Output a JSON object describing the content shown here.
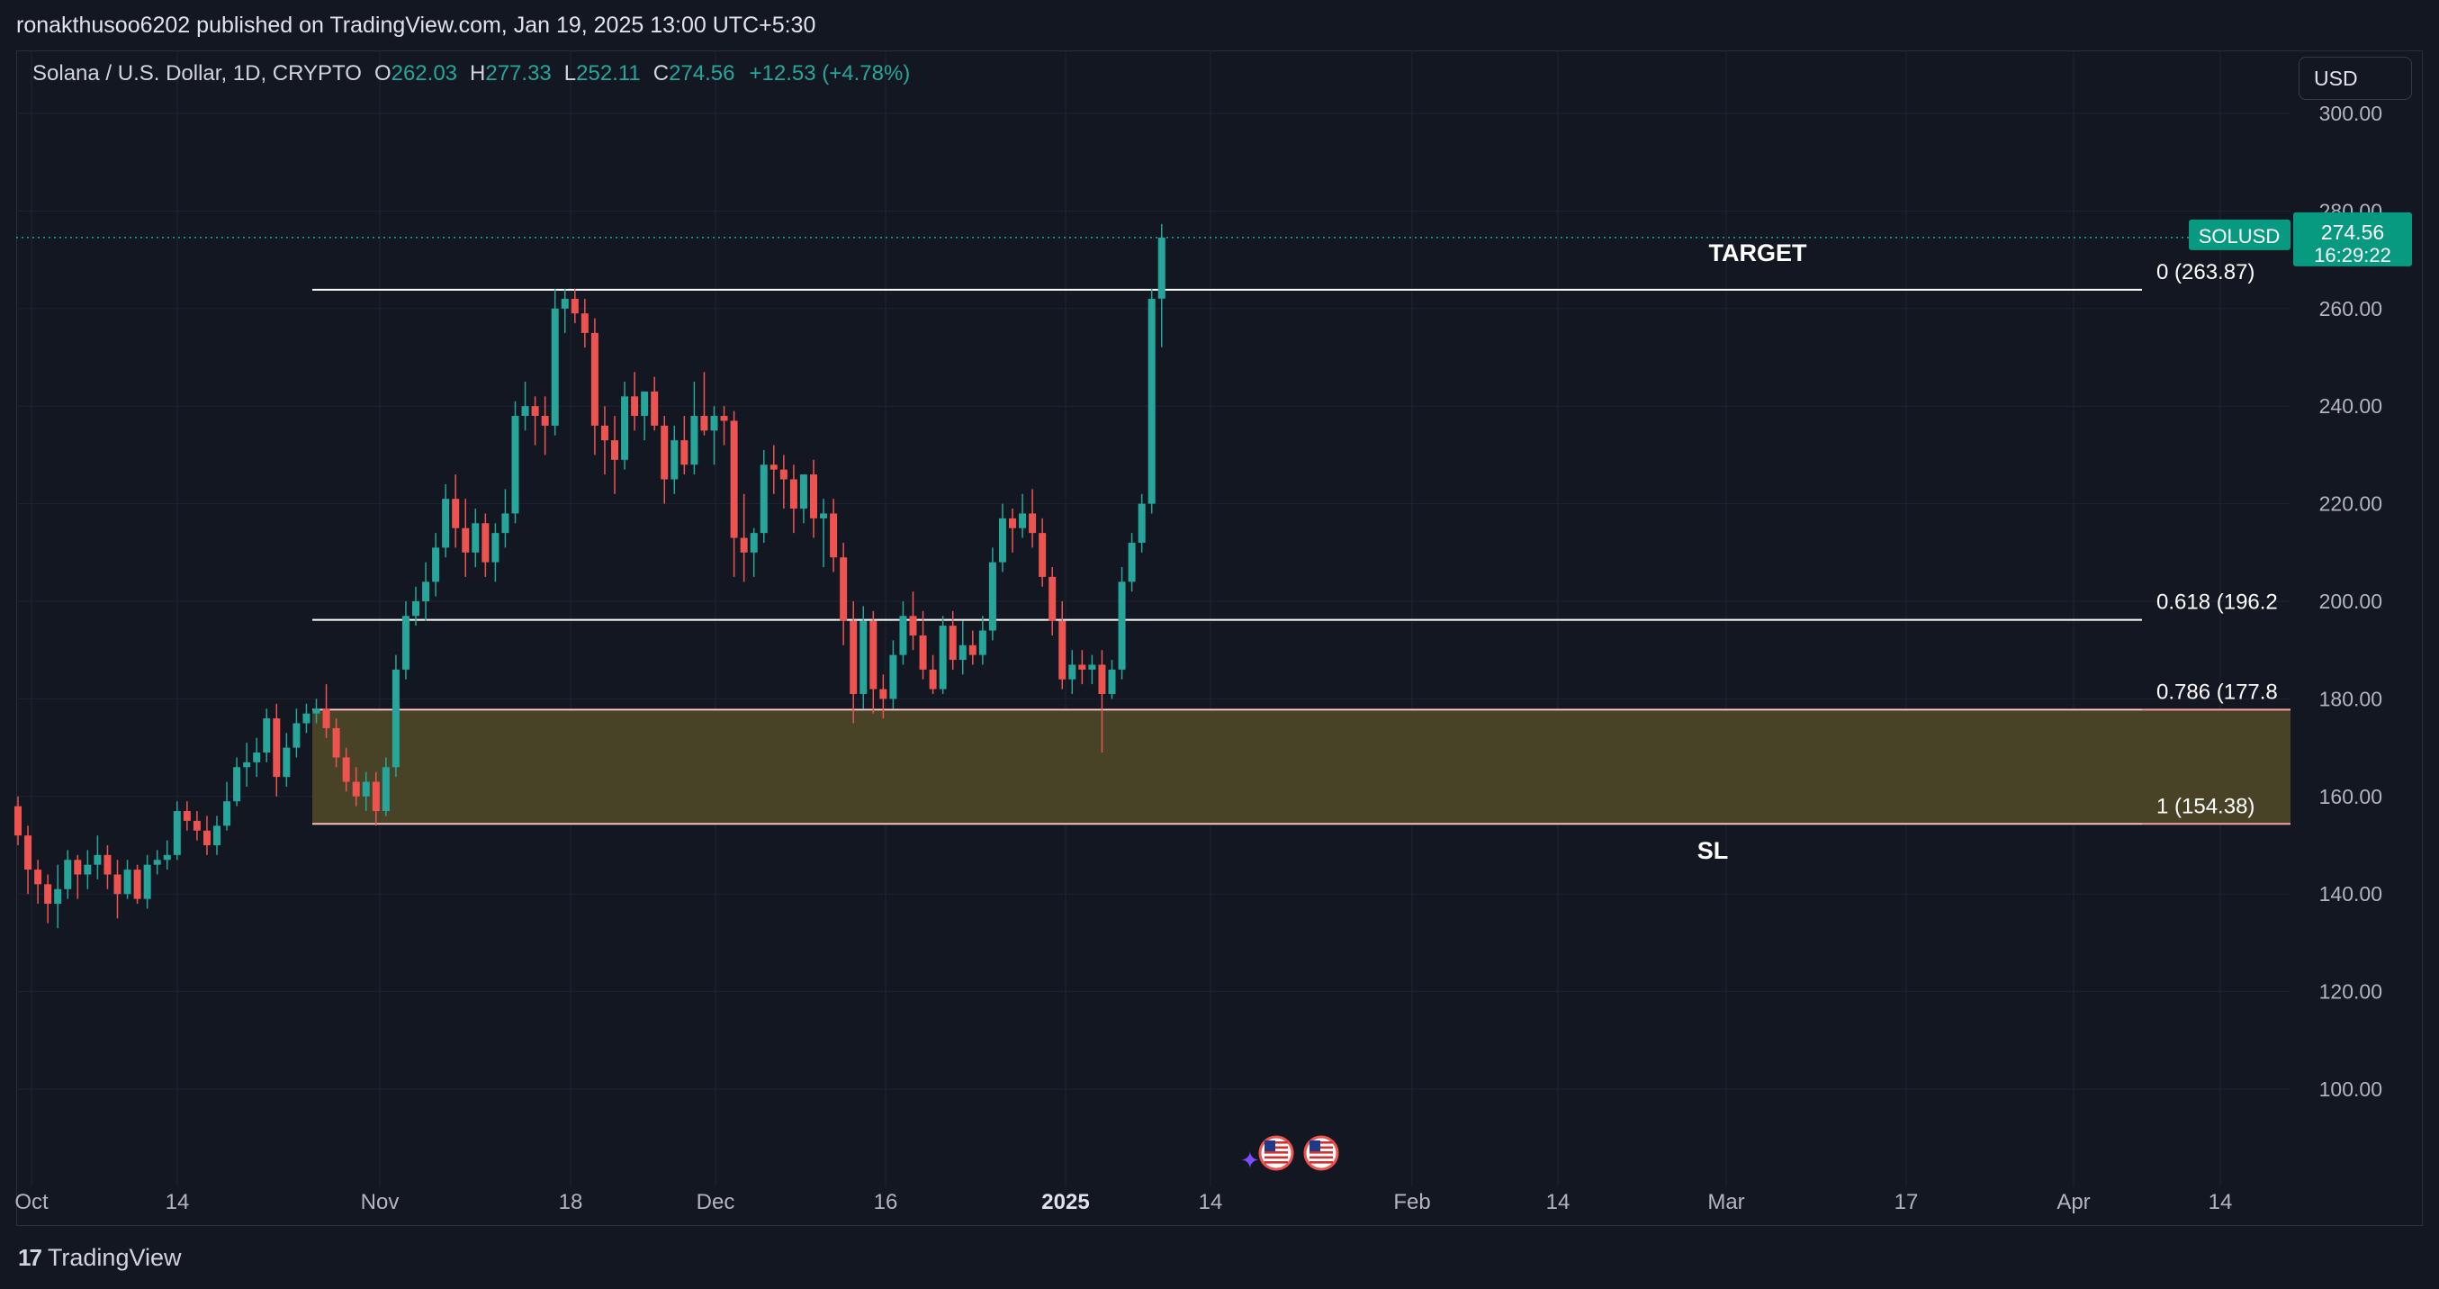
{
  "header": {
    "publisher_text": "ronakthusoo6202 published on TradingView.com, Jan 19, 2025 13:00 UTC+5:30"
  },
  "legend": {
    "symbol": "Solana / U.S. Dollar, 1D, CRYPTO",
    "open_label": "O",
    "open": "262.03",
    "high_label": "H",
    "high": "277.33",
    "low_label": "L",
    "low": "252.11",
    "close_label": "C",
    "close": "274.56",
    "change": "+12.53 (+4.78%)"
  },
  "currency_button": "USD",
  "colors": {
    "background": "#131722",
    "up": "#26a69a",
    "down": "#ef5350",
    "grid": "#1f2431",
    "zone_fill": "#4b4628",
    "zone_border": "#f5a3a3",
    "price_tag": "#089981"
  },
  "price_axis": {
    "ticks": [
      "300.00",
      "280.00",
      "260.00",
      "240.00",
      "220.00",
      "200.00",
      "180.00",
      "160.00",
      "140.00",
      "120.00",
      "100.00"
    ],
    "current_symbol": "SOLUSD",
    "current_price": "274.56",
    "countdown": "16:29:22"
  },
  "time_axis": {
    "ticks": [
      "Oct",
      "14",
      "Nov",
      "18",
      "Dec",
      "16",
      "2025",
      "14",
      "Feb",
      "14",
      "Mar",
      "17",
      "Apr",
      "14"
    ]
  },
  "annotations": {
    "target_label": "TARGET",
    "sl_label": "SL",
    "fib_levels": [
      {
        "ratio_label": "0 (263.87)",
        "price": 263.87
      },
      {
        "ratio_label": "0.618 (196.2",
        "price": 196.2
      },
      {
        "ratio_label": "0.786 (177.8",
        "price": 177.8
      },
      {
        "ratio_label": "1 (154.38)",
        "price": 154.38
      }
    ]
  },
  "event_icons": [
    "us-flag-icon",
    "us-flag-icon"
  ],
  "footer": {
    "brand": "TradingView",
    "brand_mark": "17"
  },
  "chart_data": {
    "type": "candlestick",
    "title": "Solana / U.S. Dollar, 1D, CRYPTO",
    "ylim": [
      90,
      305
    ],
    "start_date": "2024-09-29",
    "candles": [
      {
        "o": 158.0,
        "h": 160.0,
        "l": 150.0,
        "c": 152.0
      },
      {
        "o": 152.0,
        "h": 154.0,
        "l": 140.0,
        "c": 145.0
      },
      {
        "o": 145.0,
        "h": 147.0,
        "l": 138.0,
        "c": 142.0
      },
      {
        "o": 142.0,
        "h": 144.0,
        "l": 134.0,
        "c": 138.0
      },
      {
        "o": 138.0,
        "h": 146.0,
        "l": 133.0,
        "c": 141.0
      },
      {
        "o": 141.0,
        "h": 149.0,
        "l": 139.0,
        "c": 147.0
      },
      {
        "o": 147.0,
        "h": 148.0,
        "l": 139.0,
        "c": 144.0
      },
      {
        "o": 144.0,
        "h": 149.0,
        "l": 141.0,
        "c": 146.0
      },
      {
        "o": 146.0,
        "h": 152.0,
        "l": 143.0,
        "c": 148.0
      },
      {
        "o": 148.0,
        "h": 150.0,
        "l": 141.0,
        "c": 144.0
      },
      {
        "o": 144.0,
        "h": 147.0,
        "l": 135.0,
        "c": 140.0
      },
      {
        "o": 140.0,
        "h": 147.0,
        "l": 139.0,
        "c": 145.0
      },
      {
        "o": 145.0,
        "h": 146.0,
        "l": 138.0,
        "c": 139.0
      },
      {
        "o": 139.0,
        "h": 148.0,
        "l": 137.0,
        "c": 146.0
      },
      {
        "o": 146.0,
        "h": 149.0,
        "l": 144.0,
        "c": 147.0
      },
      {
        "o": 147.0,
        "h": 151.0,
        "l": 145.0,
        "c": 148.0
      },
      {
        "o": 148.0,
        "h": 159.0,
        "l": 147.0,
        "c": 157.0
      },
      {
        "o": 157.0,
        "h": 159.0,
        "l": 153.0,
        "c": 155.0
      },
      {
        "o": 155.0,
        "h": 157.0,
        "l": 151.0,
        "c": 153.0
      },
      {
        "o": 153.0,
        "h": 156.0,
        "l": 148.0,
        "c": 150.0
      },
      {
        "o": 150.0,
        "h": 156.0,
        "l": 148.0,
        "c": 154.0
      },
      {
        "o": 154.0,
        "h": 163.0,
        "l": 153.0,
        "c": 159.0
      },
      {
        "o": 159.0,
        "h": 168.0,
        "l": 158.0,
        "c": 166.0
      },
      {
        "o": 166.0,
        "h": 171.0,
        "l": 162.0,
        "c": 167.0
      },
      {
        "o": 167.0,
        "h": 172.0,
        "l": 164.0,
        "c": 169.0
      },
      {
        "o": 169.0,
        "h": 178.0,
        "l": 167.0,
        "c": 176.0
      },
      {
        "o": 176.0,
        "h": 179.0,
        "l": 160.0,
        "c": 164.0
      },
      {
        "o": 164.0,
        "h": 173.0,
        "l": 162.0,
        "c": 170.0
      },
      {
        "o": 170.0,
        "h": 178.0,
        "l": 168.0,
        "c": 175.0
      },
      {
        "o": 175.0,
        "h": 179.0,
        "l": 173.0,
        "c": 177.0
      },
      {
        "o": 177.0,
        "h": 180.0,
        "l": 175.0,
        "c": 178.0
      },
      {
        "o": 178.0,
        "h": 183.0,
        "l": 172.0,
        "c": 174.0
      },
      {
        "o": 174.0,
        "h": 176.0,
        "l": 166.0,
        "c": 168.0
      },
      {
        "o": 168.0,
        "h": 170.0,
        "l": 161.0,
        "c": 163.0
      },
      {
        "o": 163.0,
        "h": 166.0,
        "l": 158.0,
        "c": 160.0
      },
      {
        "o": 160.0,
        "h": 165.0,
        "l": 157.0,
        "c": 163.0
      },
      {
        "o": 163.0,
        "h": 165.0,
        "l": 154.0,
        "c": 157.0
      },
      {
        "o": 157.0,
        "h": 168.0,
        "l": 156.0,
        "c": 166.0
      },
      {
        "o": 166.0,
        "h": 189.0,
        "l": 164.0,
        "c": 186.0
      },
      {
        "o": 186.0,
        "h": 200.0,
        "l": 184.0,
        "c": 197.0
      },
      {
        "o": 197.0,
        "h": 203.0,
        "l": 195.0,
        "c": 200.0
      },
      {
        "o": 200.0,
        "h": 208.0,
        "l": 196.0,
        "c": 204.0
      },
      {
        "o": 204.0,
        "h": 214.0,
        "l": 201.0,
        "c": 211.0
      },
      {
        "o": 211.0,
        "h": 224.0,
        "l": 209.0,
        "c": 221.0
      },
      {
        "o": 221.0,
        "h": 226.0,
        "l": 211.0,
        "c": 215.0
      },
      {
        "o": 215.0,
        "h": 221.0,
        "l": 205.0,
        "c": 210.0
      },
      {
        "o": 210.0,
        "h": 219.0,
        "l": 207.0,
        "c": 216.0
      },
      {
        "o": 216.0,
        "h": 218.0,
        "l": 205.0,
        "c": 208.0
      },
      {
        "o": 208.0,
        "h": 216.0,
        "l": 204.0,
        "c": 214.0
      },
      {
        "o": 214.0,
        "h": 223.0,
        "l": 211.0,
        "c": 218.0
      },
      {
        "o": 218.0,
        "h": 241.0,
        "l": 216.0,
        "c": 238.0
      },
      {
        "o": 238.0,
        "h": 245.0,
        "l": 235.0,
        "c": 240.0
      },
      {
        "o": 240.0,
        "h": 242.0,
        "l": 232.0,
        "c": 238.0
      },
      {
        "o": 238.0,
        "h": 242.0,
        "l": 230.0,
        "c": 236.0
      },
      {
        "o": 236.0,
        "h": 264.0,
        "l": 234.0,
        "c": 260.0
      },
      {
        "o": 260.0,
        "h": 264.0,
        "l": 255.0,
        "c": 262.0
      },
      {
        "o": 262.0,
        "h": 264.0,
        "l": 257.0,
        "c": 259.0
      },
      {
        "o": 259.0,
        "h": 262.0,
        "l": 252.0,
        "c": 255.0
      },
      {
        "o": 255.0,
        "h": 258.0,
        "l": 230.0,
        "c": 236.0
      },
      {
        "o": 236.0,
        "h": 240.0,
        "l": 226.0,
        "c": 233.0
      },
      {
        "o": 233.0,
        "h": 238.0,
        "l": 222.0,
        "c": 229.0
      },
      {
        "o": 229.0,
        "h": 245.0,
        "l": 227.0,
        "c": 242.0
      },
      {
        "o": 242.0,
        "h": 247.0,
        "l": 235.0,
        "c": 238.0
      },
      {
        "o": 238.0,
        "h": 243.0,
        "l": 233.0,
        "c": 243.0
      },
      {
        "o": 243.0,
        "h": 246.0,
        "l": 235.0,
        "c": 236.0
      },
      {
        "o": 236.0,
        "h": 238.0,
        "l": 220.0,
        "c": 225.0
      },
      {
        "o": 225.0,
        "h": 236.0,
        "l": 222.0,
        "c": 233.0
      },
      {
        "o": 233.0,
        "h": 238.0,
        "l": 226.0,
        "c": 228.0
      },
      {
        "o": 228.0,
        "h": 245.0,
        "l": 226.0,
        "c": 238.0
      },
      {
        "o": 238.0,
        "h": 247.0,
        "l": 234.0,
        "c": 235.0
      },
      {
        "o": 235.0,
        "h": 240.0,
        "l": 228.0,
        "c": 238.0
      },
      {
        "o": 238.0,
        "h": 240.0,
        "l": 232.0,
        "c": 237.0
      },
      {
        "o": 237.0,
        "h": 239.0,
        "l": 205.0,
        "c": 213.0
      },
      {
        "o": 213.0,
        "h": 222.0,
        "l": 204.0,
        "c": 210.0
      },
      {
        "o": 210.0,
        "h": 215.0,
        "l": 205.0,
        "c": 214.0
      },
      {
        "o": 214.0,
        "h": 231.0,
        "l": 212.0,
        "c": 228.0
      },
      {
        "o": 228.0,
        "h": 232.0,
        "l": 222.0,
        "c": 227.0
      },
      {
        "o": 227.0,
        "h": 230.0,
        "l": 219.0,
        "c": 225.0
      },
      {
        "o": 225.0,
        "h": 228.0,
        "l": 214.0,
        "c": 219.0
      },
      {
        "o": 219.0,
        "h": 226.0,
        "l": 216.0,
        "c": 226.0
      },
      {
        "o": 226.0,
        "h": 229.0,
        "l": 213.0,
        "c": 217.0
      },
      {
        "o": 217.0,
        "h": 221.0,
        "l": 207.0,
        "c": 218.0
      },
      {
        "o": 218.0,
        "h": 221.0,
        "l": 206.0,
        "c": 209.0
      },
      {
        "o": 209.0,
        "h": 212.0,
        "l": 191.0,
        "c": 196.0
      },
      {
        "o": 196.0,
        "h": 200.0,
        "l": 175.0,
        "c": 181.0
      },
      {
        "o": 181.0,
        "h": 199.0,
        "l": 178.0,
        "c": 196.0
      },
      {
        "o": 196.0,
        "h": 198.0,
        "l": 177.0,
        "c": 182.0
      },
      {
        "o": 182.0,
        "h": 185.0,
        "l": 176.0,
        "c": 180.0
      },
      {
        "o": 180.0,
        "h": 192.0,
        "l": 178.0,
        "c": 189.0
      },
      {
        "o": 189.0,
        "h": 200.0,
        "l": 187.0,
        "c": 197.0
      },
      {
        "o": 197.0,
        "h": 202.0,
        "l": 190.0,
        "c": 193.0
      },
      {
        "o": 193.0,
        "h": 198.0,
        "l": 184.0,
        "c": 186.0
      },
      {
        "o": 186.0,
        "h": 189.0,
        "l": 181.0,
        "c": 182.0
      },
      {
        "o": 182.0,
        "h": 197.0,
        "l": 181.0,
        "c": 195.0
      },
      {
        "o": 195.0,
        "h": 198.0,
        "l": 186.0,
        "c": 188.0
      },
      {
        "o": 188.0,
        "h": 196.0,
        "l": 185.0,
        "c": 191.0
      },
      {
        "o": 191.0,
        "h": 194.0,
        "l": 187.0,
        "c": 189.0
      },
      {
        "o": 189.0,
        "h": 197.0,
        "l": 187.0,
        "c": 194.0
      },
      {
        "o": 194.0,
        "h": 211.0,
        "l": 192.0,
        "c": 208.0
      },
      {
        "o": 208.0,
        "h": 220.0,
        "l": 206.0,
        "c": 217.0
      },
      {
        "o": 217.0,
        "h": 219.0,
        "l": 210.0,
        "c": 215.0
      },
      {
        "o": 215.0,
        "h": 222.0,
        "l": 213.0,
        "c": 218.0
      },
      {
        "o": 218.0,
        "h": 223.0,
        "l": 211.0,
        "c": 214.0
      },
      {
        "o": 214.0,
        "h": 217.0,
        "l": 203.0,
        "c": 205.0
      },
      {
        "o": 205.0,
        "h": 207.0,
        "l": 193.0,
        "c": 196.0
      },
      {
        "o": 196.0,
        "h": 200.0,
        "l": 182.0,
        "c": 184.0
      },
      {
        "o": 184.0,
        "h": 190.0,
        "l": 181.0,
        "c": 187.0
      },
      {
        "o": 187.0,
        "h": 190.0,
        "l": 183.0,
        "c": 186.0
      },
      {
        "o": 186.0,
        "h": 189.0,
        "l": 183.0,
        "c": 187.0
      },
      {
        "o": 187.0,
        "h": 190.0,
        "l": 169.0,
        "c": 181.0
      },
      {
        "o": 181.0,
        "h": 188.0,
        "l": 180.0,
        "c": 186.0
      },
      {
        "o": 186.0,
        "h": 207.0,
        "l": 184.0,
        "c": 204.0
      },
      {
        "o": 204.0,
        "h": 214.0,
        "l": 202.0,
        "c": 212.0
      },
      {
        "o": 212.0,
        "h": 222.0,
        "l": 210.0,
        "c": 220.0
      },
      {
        "o": 220.0,
        "h": 264.0,
        "l": 218.0,
        "c": 262.0
      },
      {
        "o": 262.03,
        "h": 277.33,
        "l": 252.11,
        "c": 274.56
      }
    ]
  }
}
